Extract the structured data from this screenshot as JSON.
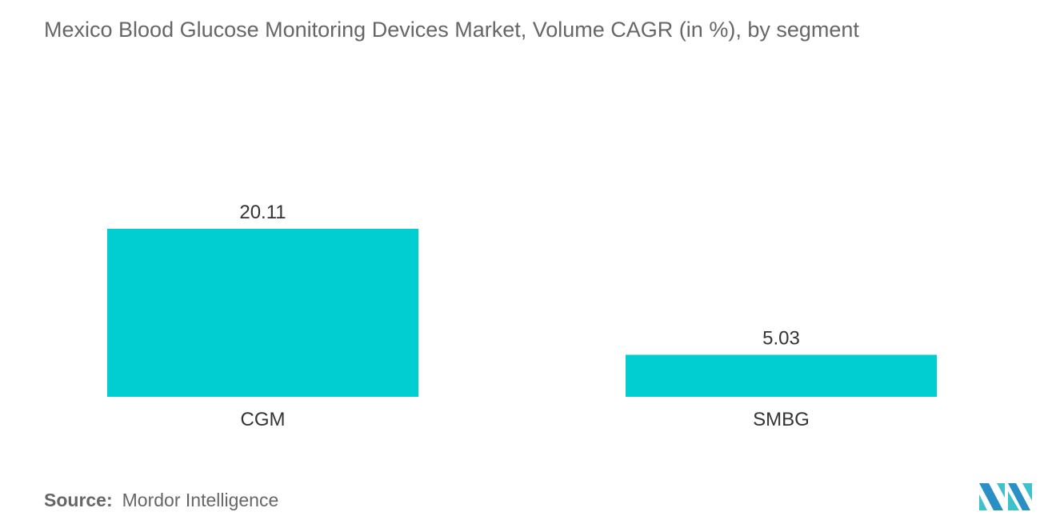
{
  "title": "Mexico Blood Glucose Monitoring Devices Market, Volume CAGR (in %), by segment",
  "source_label": "Source:",
  "source_value": "Mordor Intelligence",
  "logo_text": "Mordor Intelligence",
  "chart_data": {
    "type": "bar",
    "title": "Mexico Blood Glucose Monitoring Devices Market, Volume CAGR (in %), by segment",
    "categories": [
      "CGM",
      "SMBG"
    ],
    "values": [
      20.11,
      5.03
    ],
    "value_labels": [
      "20.11",
      "5.03"
    ],
    "xlabel": "",
    "ylabel": "",
    "ylim": [
      0,
      20.11
    ],
    "grid": false,
    "bar_color": "#00CED1"
  }
}
